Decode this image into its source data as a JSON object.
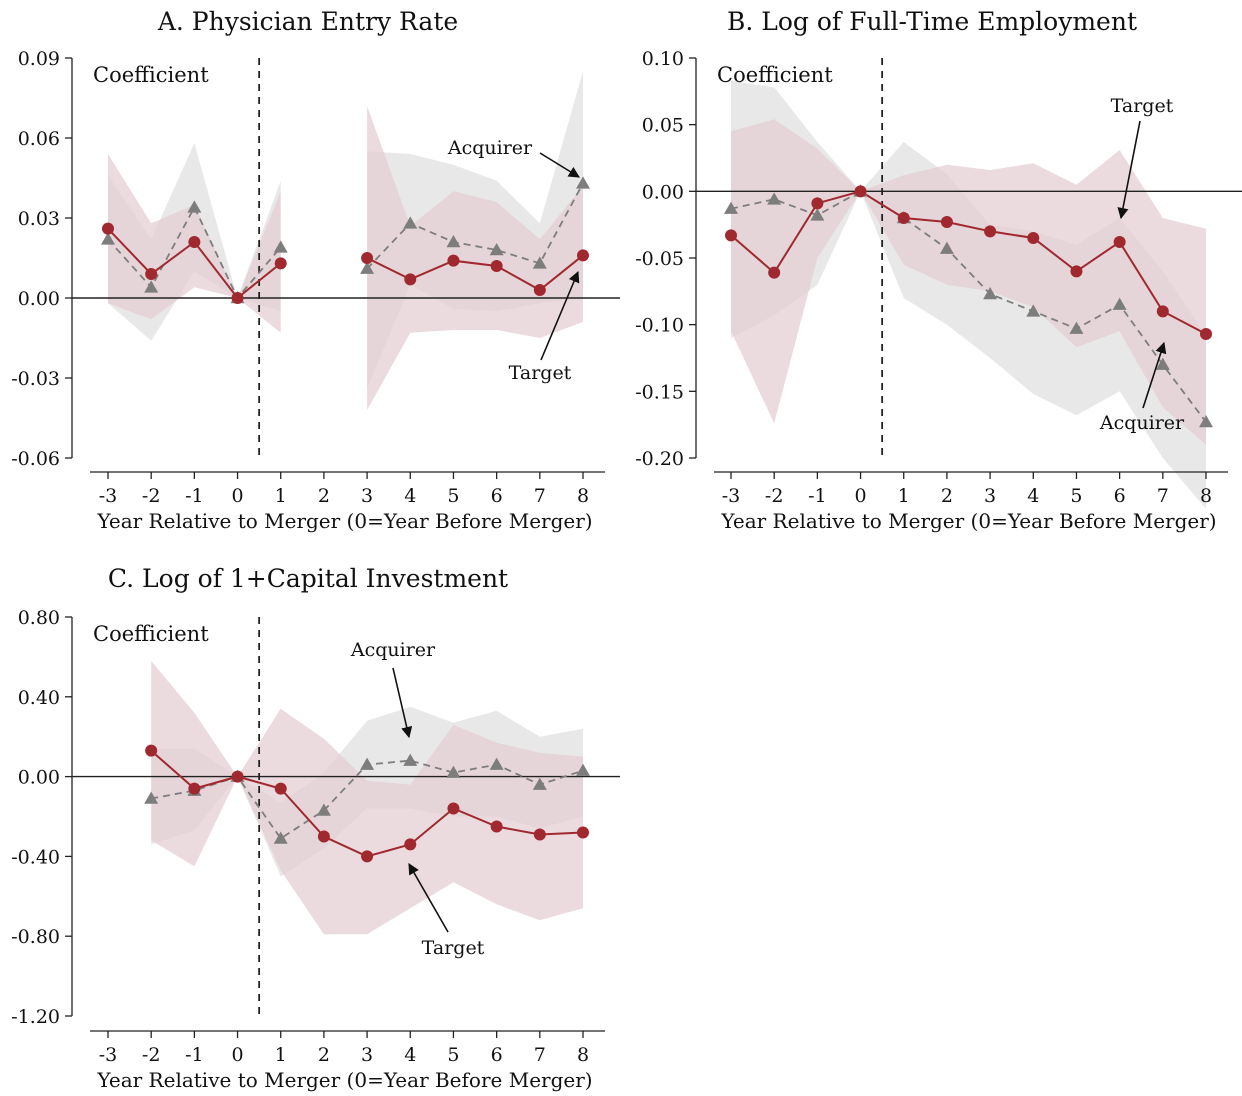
{
  "chart_data": [
    {
      "type": "line",
      "title": "A. Physician Entry Rate",
      "ylabel": "Coefficient",
      "xlabel": "Year Relative to Merger (0=Year Before Merger)",
      "x_ticks": [
        "-3",
        "-2",
        "-1",
        "0",
        "1",
        "2",
        "3",
        "4",
        "5",
        "6",
        "7",
        "8"
      ],
      "y_ticks": [
        "0.09",
        "0.06",
        "0.03",
        "0.00",
        "-0.03",
        "-0.06"
      ],
      "y_tick_values": [
        0.09,
        0.06,
        0.03,
        0.0,
        -0.03,
        -0.06
      ],
      "xlim": [
        -3.5,
        8.5
      ],
      "ylim": [
        -0.06,
        0.09
      ],
      "event_line_x": 0.5,
      "zero_line": true,
      "series": [
        {
          "name": "Target",
          "color": "#a0282f",
          "band_color": "#e6cfd3",
          "marker": "circle",
          "line": "solid",
          "points": [
            [
              -3,
              0.026
            ],
            [
              -2,
              0.009
            ],
            [
              -1,
              0.021
            ],
            [
              0,
              0.0
            ],
            [
              1,
              0.013
            ],
            [
              null,
              null
            ],
            [
              3,
              0.015
            ],
            [
              4,
              0.007
            ],
            [
              5,
              0.014
            ],
            [
              6,
              0.012
            ],
            [
              7,
              0.003
            ],
            [
              8,
              0.016
            ]
          ],
          "band": [
            {
              "x": [
                -3,
                -2,
                -1,
                0,
                1
              ],
              "lower": [
                -0.002,
                -0.008,
                0.004,
                0.0,
                -0.013
              ],
              "upper": [
                0.054,
                0.028,
                0.035,
                0.0,
                0.04
              ]
            },
            {
              "x": [
                3,
                4,
                5,
                6,
                7,
                8
              ],
              "lower": [
                -0.042,
                -0.013,
                -0.012,
                -0.012,
                -0.015,
                -0.009
              ],
              "upper": [
                0.072,
                0.027,
                0.04,
                0.036,
                0.022,
                0.042
              ]
            }
          ]
        },
        {
          "name": "Acquirer",
          "color": "#7d7d7d",
          "band_color": "#e6e6e6",
          "marker": "triangle",
          "line": "dashed",
          "points": [
            [
              -3,
              0.022
            ],
            [
              -2,
              0.004
            ],
            [
              -1,
              0.034
            ],
            [
              0,
              0.0
            ],
            [
              1,
              0.019
            ],
            [
              null,
              null
            ],
            [
              3,
              0.011
            ],
            [
              4,
              0.028
            ],
            [
              5,
              0.021
            ],
            [
              6,
              0.018
            ],
            [
              7,
              0.013
            ],
            [
              8,
              0.043
            ]
          ],
          "band": [
            {
              "x": [
                -3,
                -2,
                -1,
                0,
                1
              ],
              "lower": [
                -0.002,
                -0.016,
                0.01,
                0.0,
                -0.005
              ],
              "upper": [
                0.046,
                0.022,
                0.058,
                0.0,
                0.044
              ]
            },
            {
              "x": [
                3,
                4,
                5,
                6,
                7,
                8
              ],
              "lower": [
                -0.034,
                0.005,
                -0.004,
                -0.005,
                -0.002,
                0.0
              ],
              "upper": [
                0.055,
                0.054,
                0.05,
                0.044,
                0.028,
                0.085
              ]
            }
          ]
        }
      ],
      "annotations": [
        {
          "text": "Acquirer",
          "target": [
            8,
            0.043
          ]
        },
        {
          "text": "Target",
          "target": [
            8,
            0.011
          ]
        }
      ]
    },
    {
      "type": "line",
      "title": "B. Log of Full-Time Employment",
      "ylabel": "Coefficient",
      "xlabel": "Year Relative to Merger (0=Year Before Merger)",
      "x_ticks": [
        "-3",
        "-2",
        "-1",
        "0",
        "1",
        "2",
        "3",
        "4",
        "5",
        "6",
        "7",
        "8"
      ],
      "y_ticks": [
        "0.10",
        "0.05",
        "0.00",
        "-0.05",
        "-0.10",
        "-0.15",
        "-0.20"
      ],
      "y_tick_values": [
        0.1,
        0.05,
        0.0,
        -0.05,
        -0.1,
        -0.15,
        -0.2
      ],
      "xlim": [
        -3.5,
        8.5
      ],
      "ylim": [
        -0.24,
        0.11
      ],
      "event_line_x": 0.5,
      "zero_line": true,
      "series": [
        {
          "name": "Target",
          "color": "#a0282f",
          "band_color": "#e6cfd3",
          "marker": "circle",
          "line": "solid",
          "points": [
            [
              -3,
              -0.033
            ],
            [
              -2,
              -0.061
            ],
            [
              -1,
              -0.009
            ],
            [
              0,
              0.0
            ],
            [
              1,
              -0.02
            ],
            [
              2,
              -0.023
            ],
            [
              3,
              -0.03
            ],
            [
              4,
              -0.035
            ],
            [
              5,
              -0.06
            ],
            [
              6,
              -0.038
            ],
            [
              7,
              -0.09
            ],
            [
              8,
              -0.107
            ]
          ],
          "band": [
            {
              "x": [
                -3,
                -2,
                -1,
                0,
                1,
                2,
                3,
                4,
                5,
                6,
                7,
                8
              ],
              "lower": [
                -0.105,
                -0.174,
                -0.05,
                0.0,
                -0.055,
                -0.07,
                -0.075,
                -0.087,
                -0.117,
                -0.105,
                -0.162,
                -0.19
              ],
              "upper": [
                0.045,
                0.054,
                0.032,
                0.0,
                0.012,
                0.02,
                0.016,
                0.021,
                0.005,
                0.031,
                -0.02,
                -0.028
              ]
            }
          ]
        },
        {
          "name": "Acquirer",
          "color": "#7d7d7d",
          "band_color": "#e6e6e6",
          "marker": "triangle",
          "line": "dashed",
          "points": [
            [
              -3,
              -0.013
            ],
            [
              -2,
              -0.006
            ],
            [
              -1,
              -0.018
            ],
            [
              0,
              0.0
            ],
            [
              1,
              -0.02
            ],
            [
              2,
              -0.043
            ],
            [
              3,
              -0.077
            ],
            [
              4,
              -0.09
            ],
            [
              5,
              -0.103
            ],
            [
              6,
              -0.085
            ],
            [
              7,
              -0.13
            ],
            [
              8,
              -0.173
            ]
          ],
          "band": [
            {
              "x": [
                -3,
                -2,
                -1,
                0,
                1,
                2,
                3,
                4,
                5,
                6,
                7,
                8
              ],
              "lower": [
                -0.11,
                -0.093,
                -0.07,
                0.0,
                -0.08,
                -0.1,
                -0.125,
                -0.152,
                -0.168,
                -0.15,
                -0.2,
                -0.238
              ],
              "upper": [
                0.083,
                0.078,
                0.037,
                0.0,
                0.037,
                0.013,
                -0.025,
                -0.03,
                -0.04,
                -0.02,
                -0.06,
                -0.108
              ]
            }
          ]
        }
      ],
      "annotations": [
        {
          "text": "Target",
          "target": [
            6,
            -0.031
          ]
        },
        {
          "text": "Acquirer",
          "target": [
            7,
            -0.137
          ]
        }
      ]
    },
    {
      "type": "line",
      "title": "C. Log of 1+Capital Investment",
      "ylabel": "Coefficient",
      "xlabel": "Year Relative to Merger (0=Year Before Merger)",
      "x_ticks": [
        "-3",
        "-2",
        "-1",
        "0",
        "1",
        "2",
        "3",
        "4",
        "5",
        "6",
        "7",
        "8"
      ],
      "y_ticks": [
        "0.80",
        "0.40",
        "0.00",
        "-0.40",
        "-0.80",
        "-1.20"
      ],
      "y_tick_values": [
        0.8,
        0.4,
        0.0,
        -0.4,
        -0.8,
        -1.2
      ],
      "xlim": [
        -3.5,
        8.5
      ],
      "ylim": [
        -1.2,
        0.8
      ],
      "event_line_x": 0.5,
      "zero_line": true,
      "series": [
        {
          "name": "Target",
          "color": "#a0282f",
          "band_color": "#e6cfd3",
          "marker": "circle",
          "line": "solid",
          "points": [
            [
              -2,
              0.13
            ],
            [
              -1,
              -0.06
            ],
            [
              0,
              0.0
            ],
            [
              1,
              -0.06
            ],
            [
              2,
              -0.3
            ],
            [
              3,
              -0.4
            ],
            [
              4,
              -0.34
            ],
            [
              5,
              -0.16
            ],
            [
              6,
              -0.25
            ],
            [
              7,
              -0.29
            ],
            [
              8,
              -0.28
            ]
          ],
          "band": [
            {
              "x": [
                -2,
                -1,
                0,
                1,
                2,
                3,
                4,
                5,
                6,
                7,
                8
              ],
              "lower": [
                -0.32,
                -0.45,
                0.0,
                -0.47,
                -0.79,
                -0.79,
                -0.66,
                -0.53,
                -0.64,
                -0.72,
                -0.66
              ],
              "upper": [
                0.58,
                0.32,
                0.0,
                0.34,
                0.19,
                -0.02,
                -0.04,
                0.26,
                0.17,
                0.12,
                0.1
              ]
            }
          ]
        },
        {
          "name": "Acquirer",
          "color": "#7d7d7d",
          "band_color": "#e6e6e6",
          "marker": "triangle",
          "line": "dashed",
          "points": [
            [
              -2,
              -0.11
            ],
            [
              -1,
              -0.07
            ],
            [
              0,
              0.0
            ],
            [
              1,
              -0.31
            ],
            [
              2,
              -0.17
            ],
            [
              3,
              0.06
            ],
            [
              4,
              0.08
            ],
            [
              5,
              0.02
            ],
            [
              6,
              0.06
            ],
            [
              7,
              -0.04
            ],
            [
              8,
              0.03
            ]
          ],
          "band": [
            {
              "x": [
                -2,
                -1,
                0,
                1,
                2,
                3,
                4,
                5,
                6,
                7,
                8
              ],
              "lower": [
                -0.34,
                -0.27,
                0.0,
                -0.5,
                -0.36,
                -0.16,
                -0.16,
                -0.2,
                -0.2,
                -0.26,
                -0.2
              ],
              "upper": [
                0.14,
                0.14,
                0.0,
                -0.13,
                0.02,
                0.28,
                0.35,
                0.27,
                0.33,
                0.2,
                0.24
              ]
            }
          ]
        }
      ],
      "annotations": [
        {
          "text": "Acquirer",
          "target": [
            4,
            0.19
          ]
        },
        {
          "text": "Target",
          "target": [
            4,
            -0.44
          ]
        }
      ]
    }
  ]
}
